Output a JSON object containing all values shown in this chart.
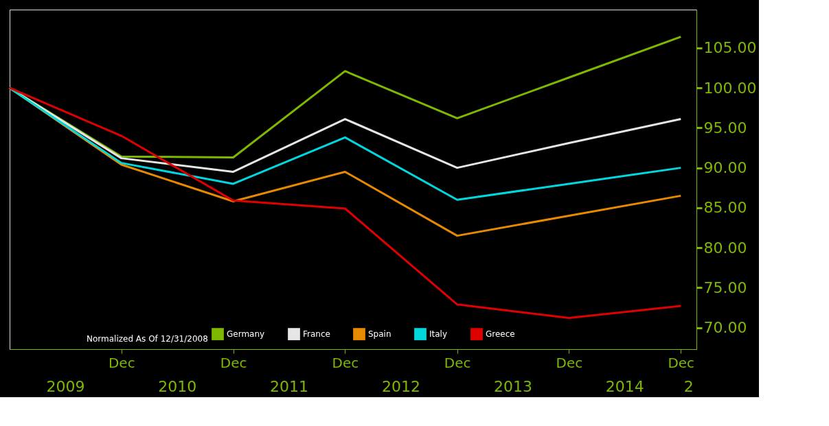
{
  "chart_data": {
    "type": "line",
    "x": [
      "2008-12-31",
      "2009-12-31",
      "2010-12-31",
      "2011-12-31",
      "2012-12-31",
      "2013-12-31",
      "2014-12-31"
    ],
    "series": [
      {
        "name": "Germany",
        "color": "#7fb800",
        "values": [
          100,
          91.4,
          91.3,
          102.1,
          96.2,
          101.3,
          106.4
        ]
      },
      {
        "name": "France",
        "color": "#e6e6e6",
        "values": [
          100,
          91.2,
          89.5,
          96.1,
          90.0,
          93.1,
          96.1
        ]
      },
      {
        "name": "Spain",
        "color": "#e88a00",
        "values": [
          100,
          90.4,
          85.8,
          89.5,
          81.5,
          84.0,
          86.5
        ]
      },
      {
        "name": "Italy",
        "color": "#00d8e0",
        "values": [
          100,
          90.6,
          88.0,
          93.8,
          86.0,
          88.0,
          90.0
        ]
      },
      {
        "name": "Greece",
        "color": "#e00000",
        "values": [
          100,
          94.0,
          85.9,
          84.9,
          72.9,
          71.2,
          72.7
        ]
      }
    ],
    "legend_title": "Normalized As Of 12/31/2008",
    "legend": "bottom",
    "xlim": [
      "2008-12-31",
      "2015-02-20"
    ],
    "xticks": [
      {
        "value": "2009-12-31",
        "label": "Dec"
      },
      {
        "value": "2010-12-31",
        "label": "Dec"
      },
      {
        "value": "2011-12-31",
        "label": "Dec"
      },
      {
        "value": "2012-12-31",
        "label": "Dec"
      },
      {
        "value": "2013-12-31",
        "label": "Dec"
      },
      {
        "value": "2014-12-31",
        "label": "Dec"
      }
    ],
    "ylim": [
      67.3,
      109.8
    ],
    "yticks": [
      {
        "value": 70,
        "label": "70.00"
      },
      {
        "value": 75,
        "label": "75.00"
      },
      {
        "value": 80,
        "label": "80.00"
      },
      {
        "value": 85,
        "label": "85.00"
      },
      {
        "value": 90,
        "label": "90.00"
      },
      {
        "value": 95,
        "label": "95.00"
      },
      {
        "value": 100,
        "label": "100.00"
      },
      {
        "value": 105,
        "label": "105.00"
      }
    ],
    "annotations": [
      "2009",
      "2010",
      "2011",
      "2012",
      "2013",
      "2014",
      "2"
    ],
    "line_style": "solid",
    "marker": "none",
    "grid": false
  }
}
